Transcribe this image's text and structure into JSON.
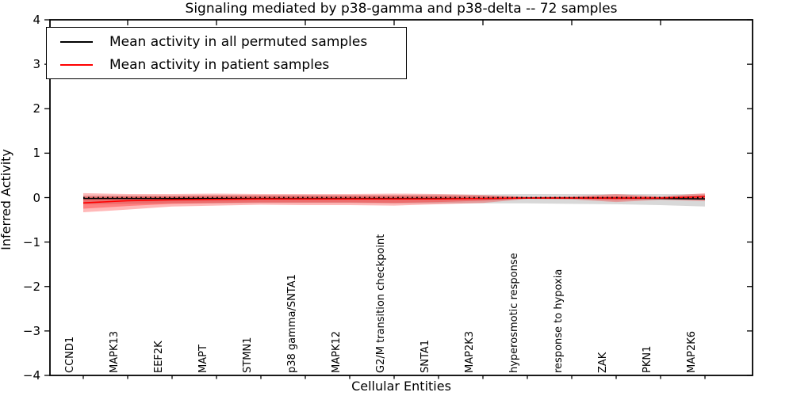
{
  "title": "Signaling mediated by p38-gamma and p38-delta -- 72 samples",
  "axes": {
    "x_label": "Cellular Entities",
    "y_label": "Inferred Activity"
  },
  "legend": {
    "items": [
      {
        "label": "Mean activity in all permuted samples",
        "color": "#000000"
      },
      {
        "label": "Mean activity in patient samples",
        "color": "#ff0000"
      }
    ]
  },
  "chart_data": {
    "type": "line",
    "title": "Signaling mediated by p38-gamma and p38-delta -- 72 samples",
    "xlabel": "Cellular Entities",
    "ylabel": "Inferred Activity",
    "ylim": [
      -4,
      4
    ],
    "yticks": [
      -4,
      -3,
      -2,
      -1,
      0,
      1,
      2,
      3,
      4
    ],
    "grid": false,
    "legend_position": "upper left",
    "categories": [
      "CCND1",
      "MAPK13",
      "EEF2K",
      "MAPT",
      "STMN1",
      "p38 gamma/SNTA1",
      "MAPK12",
      "G2/M transition checkpoint",
      "SNTA1",
      "MAP2K3",
      "hyperosmotic response",
      "response to hypoxia",
      "ZAK",
      "PKN1",
      "MAP2K6"
    ],
    "series": [
      {
        "name": "Mean activity in all permuted samples",
        "color": "#000000",
        "style": "solid",
        "values": [
          -0.02,
          -0.02,
          -0.02,
          -0.02,
          -0.02,
          -0.02,
          -0.02,
          -0.02,
          -0.02,
          -0.02,
          -0.01,
          -0.01,
          -0.01,
          -0.02,
          -0.03
        ]
      },
      {
        "name": "Mean activity in patient samples",
        "color": "#ff0000",
        "style": "solid",
        "values": [
          -0.12,
          -0.07,
          -0.05,
          -0.04,
          -0.03,
          -0.03,
          -0.03,
          -0.03,
          -0.03,
          -0.02,
          -0.01,
          -0.01,
          -0.01,
          -0.01,
          0.02
        ]
      },
      {
        "name": "zero-reference-line",
        "color": "#000000",
        "style": "dotted",
        "values": [
          0,
          0,
          0,
          0,
          0,
          0,
          0,
          0,
          0,
          0,
          0,
          0,
          0,
          0,
          0
        ]
      }
    ],
    "bands": [
      {
        "name": "permuted-samples-spread",
        "color": "rgba(100,100,100,0.25)",
        "upper": [
          0.05,
          0.05,
          0.05,
          0.06,
          0.06,
          0.06,
          0.06,
          0.06,
          0.07,
          0.07,
          0.08,
          0.08,
          0.08,
          0.08,
          0.08
        ],
        "lower": [
          -0.15,
          -0.14,
          -0.13,
          -0.13,
          -0.12,
          -0.12,
          -0.12,
          -0.13,
          -0.13,
          -0.13,
          -0.13,
          -0.14,
          -0.15,
          -0.17,
          -0.2
        ]
      },
      {
        "name": "patient-samples-spread-outer",
        "color": "rgba(255,0,0,0.28)",
        "upper": [
          0.1,
          0.08,
          0.08,
          0.09,
          0.08,
          0.08,
          0.08,
          0.09,
          0.08,
          0.06,
          0.02,
          0.03,
          0.08,
          0.03,
          0.1
        ],
        "lower": [
          -0.33,
          -0.27,
          -0.2,
          -0.18,
          -0.16,
          -0.17,
          -0.17,
          -0.18,
          -0.15,
          -0.12,
          -0.03,
          -0.04,
          -0.1,
          -0.05,
          -0.08
        ]
      },
      {
        "name": "patient-samples-spread-inner",
        "color": "rgba(255,0,0,0.3)",
        "upper": [
          0.02,
          0.03,
          0.03,
          0.04,
          0.04,
          0.04,
          0.04,
          0.04,
          0.04,
          0.03,
          0.01,
          0.01,
          0.04,
          0.01,
          0.06
        ],
        "lower": [
          -0.25,
          -0.19,
          -0.14,
          -0.12,
          -0.11,
          -0.11,
          -0.11,
          -0.12,
          -0.1,
          -0.07,
          -0.02,
          -0.02,
          -0.06,
          -0.02,
          -0.03
        ]
      }
    ]
  }
}
